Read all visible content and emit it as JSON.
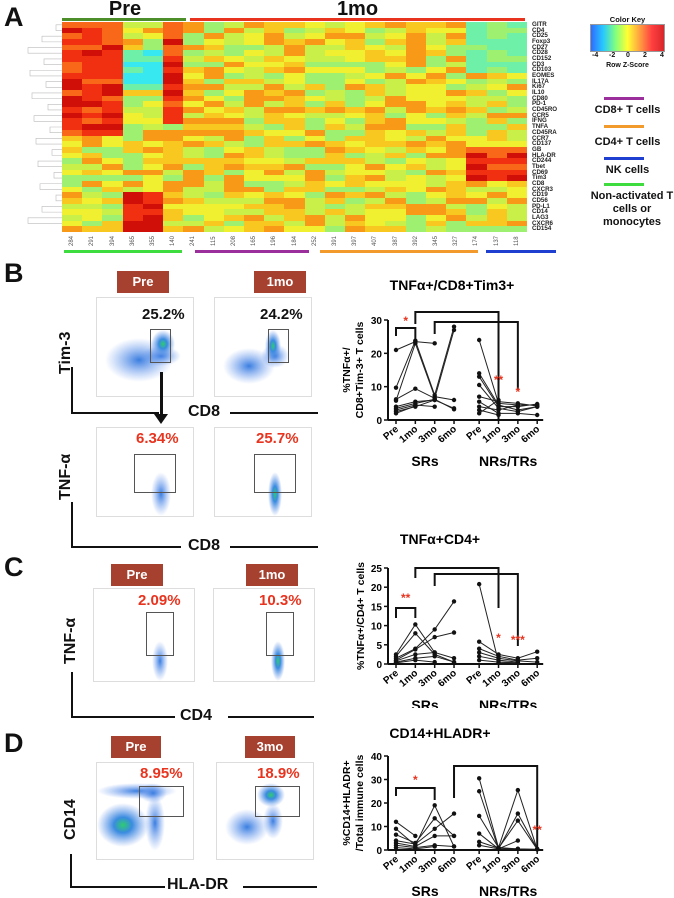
{
  "panels": {
    "A": {
      "letter": "A",
      "group_titles": {
        "pre": "Pre",
        "post": "1mo"
      },
      "row_labels": [
        "GITR",
        "CD4",
        "CD25",
        "Foxp3",
        "CD27",
        "CD28",
        "CD152",
        "CD3",
        "CD103",
        "EOMES",
        "IL17A",
        "Ki67",
        "IL10",
        "CD80",
        "PD-1",
        "CD45RO",
        "CCR5",
        "IFNG",
        "TNFA",
        "CD45RA",
        "CCR7",
        "CD137",
        "GB",
        "HLA-DR",
        "CD244",
        "Tbet",
        "CD69",
        "Tim3",
        "CD8",
        "CXCR3",
        "CD19",
        "CD56",
        "PD-L1",
        "CD14",
        "LAG3",
        "CXCR6",
        "CD154"
      ],
      "column_labels": [
        "284",
        "291",
        "394",
        "365",
        "355",
        "140",
        "241",
        "115",
        "208",
        "165",
        "196",
        "184",
        "252",
        "391",
        "397",
        "407",
        "387",
        "392",
        "345",
        "327",
        "174",
        "137",
        "118"
      ],
      "color_key": {
        "title": "Color Key",
        "ticks": [
          "-4",
          "-2",
          "0",
          "2",
          "4"
        ],
        "xlabel": "Row Z-Score"
      },
      "cluster_legend": [
        {
          "label": "CD8+ T cells",
          "color": "#9b2f9b"
        },
        {
          "label": "CD4+ T cells",
          "color": "#f29b2c"
        },
        {
          "label": "NK cells",
          "color": "#1f3fd1"
        },
        {
          "label": "Non-activated T cells or monocytes",
          "color": "#3fdc3f"
        }
      ],
      "group_colors": {
        "pre": "#4c8f2a",
        "post": "#e8341f"
      }
    },
    "B": {
      "letter": "B",
      "flow": {
        "timepoints": [
          "Pre",
          "1mo"
        ],
        "top_pcts": [
          "25.2%",
          "24.2%"
        ],
        "bottom_pcts": [
          "6.34%",
          "25.7%"
        ],
        "top_ylabel": "Tim-3",
        "top_xlabel": "CD8",
        "bottom_ylabel": "TNF-α",
        "bottom_xlabel": "CD8"
      }
    },
    "C": {
      "letter": "C",
      "flow": {
        "timepoints": [
          "Pre",
          "1mo"
        ],
        "pcts": [
          "2.09%",
          "10.3%"
        ],
        "ylabel": "TNF-α",
        "xlabel": "CD4"
      }
    },
    "D": {
      "letter": "D",
      "flow": {
        "timepoints": [
          "Pre",
          "3mo"
        ],
        "pcts": [
          "8.95%",
          "18.9%"
        ],
        "ylabel": "CD14",
        "xlabel": "HLA-DR"
      }
    }
  },
  "chart_data": [
    {
      "type": "line",
      "id": "B",
      "title": "TNFα+/CD8+Tim3+",
      "ylabel": "%TNFα+/ CD8+Tim-3+ T cells",
      "ylim": [
        0,
        30
      ],
      "yticks": [
        0,
        10,
        20,
        30
      ],
      "categories": [
        "Pre",
        "1mo",
        "3mo",
        "6mo",
        "Pre",
        "1mo",
        "3mo",
        "6mo"
      ],
      "groups": [
        "SRs",
        "NRs/TRs"
      ],
      "series": [
        {
          "group": "SRs",
          "values": [
            21,
            23.5,
            23,
            null
          ]
        },
        {
          "group": "SRs",
          "values": [
            9.7,
            23.8,
            7.5,
            28
          ]
        },
        {
          "group": "SRs",
          "values": [
            6.2,
            9.4,
            6.5,
            27
          ]
        },
        {
          "group": "SRs",
          "values": [
            5.8,
            23,
            7,
            6
          ]
        },
        {
          "group": "SRs",
          "values": [
            4,
            5.5,
            6,
            3.5
          ]
        },
        {
          "group": "SRs",
          "values": [
            3.5,
            5,
            6.2,
            3.2
          ]
        },
        {
          "group": "SRs",
          "values": [
            3,
            4.5,
            4,
            null
          ]
        },
        {
          "group": "SRs",
          "values": [
            2.5,
            4,
            6,
            null
          ]
        },
        {
          "group": "SRs",
          "values": [
            2,
            4.2,
            null,
            null
          ]
        },
        {
          "group": "NRs/TRs",
          "values": [
            24,
            5,
            4.5,
            4.5
          ]
        },
        {
          "group": "NRs/TRs",
          "values": [
            14,
            4.5,
            3,
            4
          ]
        },
        {
          "group": "NRs/TRs",
          "values": [
            13,
            4,
            4,
            4.8
          ]
        },
        {
          "group": "NRs/TRs",
          "values": [
            10.5,
            3.5,
            2.5,
            4
          ]
        },
        {
          "group": "NRs/TRs",
          "values": [
            7,
            5.5,
            5,
            4.2
          ]
        },
        {
          "group": "NRs/TRs",
          "values": [
            5.5,
            2,
            2,
            1.5
          ]
        },
        {
          "group": "NRs/TRs",
          "values": [
            4,
            3,
            4.5,
            null
          ]
        },
        {
          "group": "NRs/TRs",
          "values": [
            3,
            1.5,
            null,
            null
          ]
        },
        {
          "group": "NRs/TRs",
          "values": [
            2,
            6,
            null,
            null
          ]
        }
      ],
      "brackets": [
        {
          "from": 0,
          "to": 1,
          "label": "*"
        },
        {
          "from": 1,
          "to": 5,
          "label": "**"
        },
        {
          "from": 2,
          "to": 6,
          "label": "*"
        }
      ]
    },
    {
      "type": "line",
      "id": "C",
      "title": "TNFα+CD4+",
      "ylabel": "%TNFα+/CD4+ T cells",
      "ylim": [
        0,
        25
      ],
      "yticks": [
        0,
        5,
        10,
        15,
        20,
        25
      ],
      "categories": [
        "Pre",
        "1mo",
        "3mo",
        "6mo",
        "Pre",
        "1mo",
        "3mo",
        "6mo"
      ],
      "groups": [
        "SRs",
        "NRs/TRs"
      ],
      "series": [
        {
          "group": "SRs",
          "values": [
            2.5,
            10.3,
            3,
            1.5
          ]
        },
        {
          "group": "SRs",
          "values": [
            2,
            8,
            2.5,
            0.5
          ]
        },
        {
          "group": "SRs",
          "values": [
            1.5,
            4,
            9,
            16.3
          ]
        },
        {
          "group": "SRs",
          "values": [
            1,
            3.8,
            7,
            8.2
          ]
        },
        {
          "group": "SRs",
          "values": [
            0.8,
            2.5,
            3,
            null
          ]
        },
        {
          "group": "SRs",
          "values": [
            0.5,
            1.5,
            2,
            0.5
          ]
        },
        {
          "group": "SRs",
          "values": [
            0.3,
            1,
            0.5,
            null
          ]
        },
        {
          "group": "NRs/TRs",
          "values": [
            20.8,
            0.5,
            0.3,
            null
          ]
        },
        {
          "group": "NRs/TRs",
          "values": [
            5.8,
            2.5,
            1.5,
            3.2
          ]
        },
        {
          "group": "NRs/TRs",
          "values": [
            4,
            2,
            1,
            1.5
          ]
        },
        {
          "group": "NRs/TRs",
          "values": [
            3,
            1.5,
            0.8,
            0.5
          ]
        },
        {
          "group": "NRs/TRs",
          "values": [
            2,
            1,
            0.5,
            null
          ]
        },
        {
          "group": "NRs/TRs",
          "values": [
            1,
            0.5,
            0.3,
            null
          ]
        }
      ],
      "brackets": [
        {
          "from": 0,
          "to": 1,
          "label": "**"
        },
        {
          "from": 1,
          "to": 5,
          "label": "*"
        },
        {
          "from": 2,
          "to": 6,
          "label": "***"
        }
      ]
    },
    {
      "type": "line",
      "id": "D",
      "title": "CD14+HLADR+",
      "ylabel": "%CD14+HLADR+ /Total immune cells",
      "ylim": [
        0,
        40
      ],
      "yticks": [
        0,
        10,
        20,
        30,
        40
      ],
      "categories": [
        "Pre",
        "1mo",
        "3mo",
        "6mo",
        "Pre",
        "1mo",
        "3mo",
        "6mo"
      ],
      "groups": [
        "SRs",
        "NRs/TRs"
      ],
      "series": [
        {
          "group": "SRs",
          "values": [
            12,
            6,
            null,
            null
          ]
        },
        {
          "group": "SRs",
          "values": [
            9,
            2,
            19,
            1.5
          ]
        },
        {
          "group": "SRs",
          "values": [
            6.5,
            3,
            13.5,
            6
          ]
        },
        {
          "group": "SRs",
          "values": [
            4,
            2.5,
            9,
            15.5
          ]
        },
        {
          "group": "SRs",
          "values": [
            3,
            1.5,
            6,
            6
          ]
        },
        {
          "group": "SRs",
          "values": [
            2,
            1,
            2,
            1.5
          ]
        },
        {
          "group": "SRs",
          "values": [
            1,
            0.5,
            1.5,
            null
          ]
        },
        {
          "group": "NRs/TRs",
          "values": [
            30.5,
            1,
            0.5,
            0.3
          ]
        },
        {
          "group": "NRs/TRs",
          "values": [
            25,
            0.5,
            4,
            null
          ]
        },
        {
          "group": "NRs/TRs",
          "values": [
            14.5,
            1,
            25.5,
            0.3
          ]
        },
        {
          "group": "NRs/TRs",
          "values": [
            7,
            0.5,
            15.5,
            0.5
          ]
        },
        {
          "group": "NRs/TRs",
          "values": [
            3.5,
            0.8,
            12.5,
            0.3
          ]
        },
        {
          "group": "NRs/TRs",
          "values": [
            2,
            0.5,
            0.5,
            null
          ]
        }
      ],
      "brackets": [
        {
          "from": 0,
          "to": 2,
          "label": "*"
        },
        {
          "from": 3,
          "to": 7,
          "label": "**"
        }
      ]
    }
  ]
}
